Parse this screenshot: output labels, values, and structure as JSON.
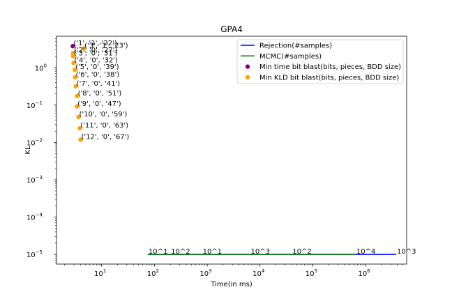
{
  "chart_data": {
    "type": "scatter",
    "title": "GPA4",
    "xlabel": "Time(in ms)",
    "ylabel": "KL",
    "xscale": "log",
    "yscale": "log",
    "xlim": [
      1.4,
      6000000
    ],
    "ylim": [
      5.5e-06,
      7
    ],
    "x_ticks": [
      {
        "value": 10,
        "base": "10",
        "exp": "1"
      },
      {
        "value": 100,
        "base": "10",
        "exp": "2"
      },
      {
        "value": 1000,
        "base": "10",
        "exp": "3"
      },
      {
        "value": 10000,
        "base": "10",
        "exp": "4"
      },
      {
        "value": 100000,
        "base": "10",
        "exp": "5"
      },
      {
        "value": 1000000,
        "base": "10",
        "exp": "6"
      }
    ],
    "y_ticks": [
      {
        "value": 1e-05,
        "base": "10",
        "exp": "−5"
      },
      {
        "value": 0.0001,
        "base": "10",
        "exp": "−4"
      },
      {
        "value": 0.001,
        "base": "10",
        "exp": "−3"
      },
      {
        "value": 0.01,
        "base": "10",
        "exp": "−2"
      },
      {
        "value": 0.1,
        "base": "10",
        "exp": "−1"
      },
      {
        "value": 1,
        "base": "10",
        "exp": "0"
      }
    ],
    "legend_position": "top-right",
    "series": [
      {
        "name": "Rejection(#samples)",
        "kind": "line",
        "color": "#0000ff",
        "points": [
          {
            "x": 75,
            "y": 1e-05,
            "label": "10^1"
          },
          {
            "x": 200,
            "y": 1e-05,
            "label": "10^2"
          },
          {
            "x": 800,
            "y": 1e-05,
            "label": "10^1"
          },
          {
            "x": 6500,
            "y": 1e-05,
            "label": "10^3"
          },
          {
            "x": 40000,
            "y": 1e-05,
            "label": "10^2"
          },
          {
            "x": 650000,
            "y": 1e-05,
            "label": "10^4"
          },
          {
            "x": 3800000,
            "y": 1e-05,
            "label": "10^3"
          }
        ]
      },
      {
        "name": "MCMC(#samples)",
        "kind": "line",
        "color": "#008000",
        "points": [
          {
            "x": 75,
            "y": 1e-05
          },
          {
            "x": 800,
            "y": 1e-05
          },
          {
            "x": 40000,
            "y": 1e-05
          },
          {
            "x": 650000,
            "y": 1e-05
          }
        ]
      },
      {
        "name": "Min time bit blast(bits, pieces, BDD size)",
        "kind": "scatter",
        "color": "#800080",
        "points": [
          {
            "x": 2.85,
            "y": 3.8,
            "label": "('1', '1', '22')"
          }
        ]
      },
      {
        "name": "Min KLD bit blast(bits, pieces, BDD size)",
        "kind": "scatter",
        "color": "#ffa500",
        "points": [
          {
            "x": 4.6,
            "y": 3.3,
            "label": "('3', '1', '23')"
          },
          {
            "x": 2.9,
            "y": 2.5,
            "label": "('2', '0', '27')"
          },
          {
            "x": 2.9,
            "y": 2.05,
            "label": "('3', '0', '31')"
          },
          {
            "x": 2.95,
            "y": 1.35,
            "label": "('4', '0', '32')"
          },
          {
            "x": 3.1,
            "y": 0.88,
            "label": "('5', '0', '39')"
          },
          {
            "x": 3.15,
            "y": 0.56,
            "label": "('6', '0', '38')"
          },
          {
            "x": 3.25,
            "y": 0.32,
            "label": "('7', '0', '41')"
          },
          {
            "x": 3.45,
            "y": 0.175,
            "label": "('8', '0', '51')"
          },
          {
            "x": 3.4,
            "y": 0.092,
            "label": "('9', '0', '47')"
          },
          {
            "x": 3.65,
            "y": 0.048,
            "label": "('10', '0', '59')"
          },
          {
            "x": 3.85,
            "y": 0.024,
            "label": "('11', '0', '63')"
          },
          {
            "x": 4.0,
            "y": 0.0118,
            "label": "('12', '0', '67')"
          }
        ]
      }
    ]
  }
}
